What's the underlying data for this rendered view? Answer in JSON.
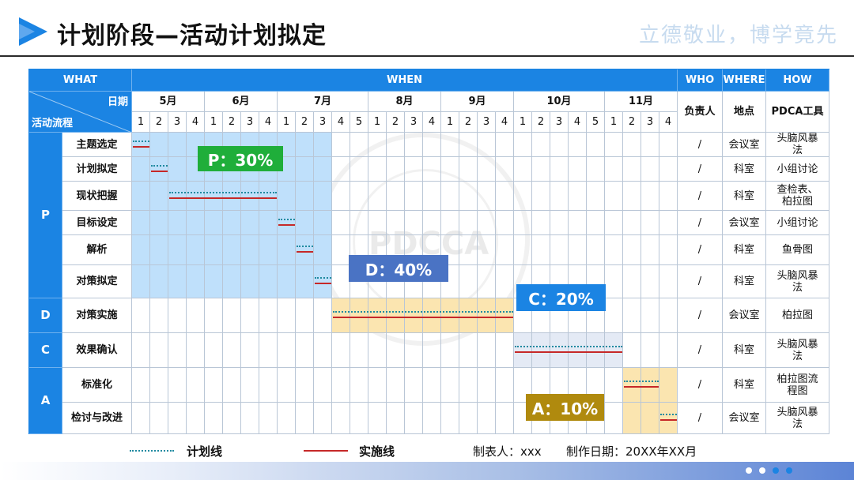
{
  "header": {
    "title": "计划阶段—活动计划拟定",
    "motto": "立德敬业，博学竟先"
  },
  "table": {
    "col_headers": {
      "what": "WHAT",
      "when": "WHEN",
      "who": "WHO",
      "where": "WHERE",
      "how": "HOW"
    },
    "diag": {
      "date_label": "日期",
      "flow_label": "活动流程"
    },
    "sub_headers": {
      "who": "负责人",
      "where": "地点",
      "how": "PDCA工具"
    },
    "months": [
      {
        "label": "5月",
        "weeks": [
          "1",
          "2",
          "3",
          "4"
        ]
      },
      {
        "label": "6月",
        "weeks": [
          "1",
          "2",
          "3",
          "4"
        ]
      },
      {
        "label": "7月",
        "weeks": [
          "1",
          "2",
          "3",
          "4",
          "5"
        ]
      },
      {
        "label": "8月",
        "weeks": [
          "1",
          "2",
          "3",
          "4"
        ]
      },
      {
        "label": "9月",
        "weeks": [
          "1",
          "2",
          "3",
          "4"
        ]
      },
      {
        "label": "10月",
        "weeks": [
          "1",
          "2",
          "3",
          "4",
          "5"
        ]
      },
      {
        "label": "11月",
        "weeks": [
          "1",
          "2",
          "3",
          "4"
        ]
      }
    ],
    "phases": [
      {
        "letter": "P",
        "rows": 6
      },
      {
        "letter": "D",
        "rows": 1
      },
      {
        "letter": "C",
        "rows": 1
      },
      {
        "letter": "A",
        "rows": 2
      }
    ],
    "rows": [
      {
        "task": "主题选定",
        "who": "/",
        "where": "会议室",
        "how": "头脑风暴法"
      },
      {
        "task": "计划拟定",
        "who": "/",
        "where": "科室",
        "how": "小组讨论"
      },
      {
        "task": "现状把握",
        "who": "/",
        "where": "科室",
        "how": "查检表、柏拉图"
      },
      {
        "task": "目标设定",
        "who": "/",
        "where": "会议室",
        "how": "小组讨论"
      },
      {
        "task": "解析",
        "who": "/",
        "where": "科室",
        "how": "鱼骨图"
      },
      {
        "task": "对策拟定",
        "who": "/",
        "where": "科室",
        "how": "头脑风暴法"
      },
      {
        "task": "对策实施",
        "who": "/",
        "where": "会议室",
        "how": "柏拉图"
      },
      {
        "task": "效果确认",
        "who": "/",
        "where": "科室",
        "how": "头脑风暴法"
      },
      {
        "task": "标准化",
        "who": "/",
        "where": "科室",
        "how": "柏拉图流程图"
      },
      {
        "task": "检讨与改进",
        "who": "/",
        "where": "会议室",
        "how": "头脑风暴法"
      }
    ],
    "schedule": [
      {
        "row": 0,
        "plan": [
          0,
          0.9
        ],
        "actual": [
          0,
          0.9
        ]
      },
      {
        "row": 1,
        "plan": [
          1,
          1.9
        ],
        "actual": [
          1,
          1.9
        ]
      },
      {
        "row": 2,
        "plan": [
          2,
          7.9
        ],
        "actual": [
          2,
          7.9
        ]
      },
      {
        "row": 3,
        "plan": [
          8,
          8.9
        ],
        "actual": [
          8,
          8.9
        ]
      },
      {
        "row": 4,
        "plan": [
          9,
          9.9
        ],
        "actual": [
          9,
          9.9
        ]
      },
      {
        "row": 5,
        "plan": [
          10,
          10.9
        ],
        "actual": [
          10,
          10.9
        ]
      },
      {
        "row": 6,
        "plan": [
          11,
          20.9
        ],
        "actual": [
          11,
          20.9
        ]
      },
      {
        "row": 7,
        "plan": [
          21,
          26.9
        ],
        "actual": [
          21,
          26.9
        ]
      },
      {
        "row": 8,
        "plan": [
          27,
          28.9
        ],
        "actual": [
          27,
          28.9
        ]
      },
      {
        "row": 9,
        "plan": [
          29,
          29.9
        ],
        "actual": [
          29,
          29.9
        ]
      }
    ],
    "shades": [
      {
        "rows": [
          0,
          5
        ],
        "weeks": [
          0,
          10
        ],
        "color": "#bfe0fb"
      },
      {
        "rows": [
          6,
          6
        ],
        "weeks": [
          11,
          20
        ],
        "color": "#fbe5b0"
      },
      {
        "rows": [
          7,
          7
        ],
        "weeks": [
          21,
          26
        ],
        "color": "#e4eaf5"
      },
      {
        "rows": [
          8,
          9
        ],
        "weeks": [
          27,
          29
        ],
        "color": "#fbe5b0"
      }
    ]
  },
  "badges": [
    {
      "key": "p",
      "text": "P：30%",
      "color": "#1fae3a"
    },
    {
      "key": "d",
      "text": "D：40%",
      "color": "#4a73c4"
    },
    {
      "key": "c",
      "text": "C：20%",
      "color": "#1b84e3"
    },
    {
      "key": "a",
      "text": "A：10%",
      "color": "#b08a0e"
    }
  ],
  "legend": {
    "plan_label": "计划线",
    "actual_label": "实施线",
    "maker": "制表人：xxx",
    "date": "制作日期：20XX年XX月"
  },
  "colors": {
    "header_blue": "#1b84e3",
    "plan_line": "#1f8aa0",
    "actual_line": "#c62828"
  },
  "footer": {
    "dots": [
      "#ffffff",
      "#ffffff",
      "#1b84e3",
      "#1b84e3"
    ]
  },
  "watermark": {
    "text": "PDCCA"
  }
}
